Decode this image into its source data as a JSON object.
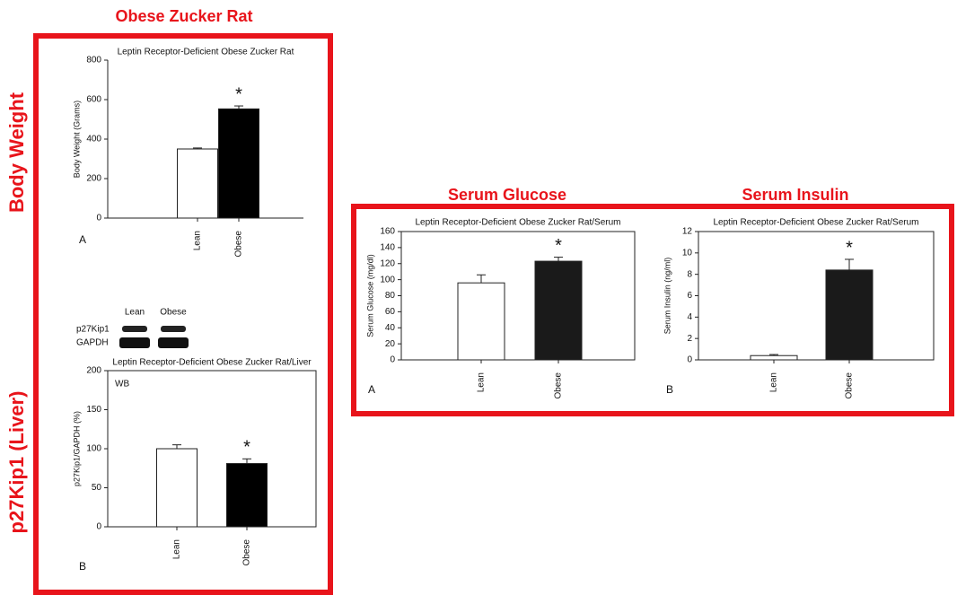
{
  "headings": {
    "top": "Obese Zucker  Rat",
    "left_upper": "Body Weight",
    "left_lower": "p27Kip1 (Liver)",
    "glucose": "Serum Glucose",
    "insulin": "Serum Insulin"
  },
  "blot": {
    "lanes": [
      "Lean",
      "Obese"
    ],
    "rows": [
      "p27Kip1",
      "GAPDH"
    ]
  },
  "chart_data": [
    {
      "type": "bar",
      "title": "Leptin Receptor-Deficient Obese Zucker Rat",
      "y_label": "Body Weight (Grams)",
      "panel": "A",
      "annotation": "*",
      "categories": [
        "Lean",
        "Obese"
      ],
      "values": [
        350,
        553
      ],
      "errors": [
        5,
        15
      ],
      "colors": [
        "#ffffff",
        "#000000"
      ],
      "ylim": [
        0,
        800
      ],
      "yticks": [
        0,
        200,
        400,
        600,
        800
      ],
      "frame": false
    },
    {
      "type": "bar",
      "title": "Leptin Receptor-Deficient Obese Zucker Rat/Liver",
      "y_label": "p27Kip1/GAPDH (%)",
      "panel": "B",
      "annotation": "*",
      "inset": "WB",
      "categories": [
        "Lean",
        "Obese"
      ],
      "values": [
        100,
        81
      ],
      "errors": [
        5,
        6
      ],
      "colors": [
        "#ffffff",
        "#000000"
      ],
      "ylim": [
        0,
        200
      ],
      "yticks": [
        0,
        50,
        100,
        150,
        200
      ],
      "frame": true
    },
    {
      "type": "bar",
      "title": "Leptin Receptor-Deficient Obese Zucker Rat/Serum",
      "y_label": "Serum Glucose (mg/dl)",
      "panel": "A",
      "annotation": "*",
      "categories": [
        "Lean",
        "Obese"
      ],
      "values": [
        96,
        123
      ],
      "errors": [
        10,
        5
      ],
      "colors": [
        "#ffffff",
        "#1a1a1a"
      ],
      "ylim": [
        0,
        160
      ],
      "yticks": [
        0,
        20,
        40,
        60,
        80,
        100,
        120,
        140,
        160
      ],
      "frame": true
    },
    {
      "type": "bar",
      "title": "Leptin Receptor-Deficient Obese Zucker Rat/Serum",
      "y_label": "Serum Insulin (ng/ml)",
      "panel": "B",
      "annotation": "*",
      "categories": [
        "Lean",
        "Obese"
      ],
      "values": [
        0.4,
        8.4
      ],
      "errors": [
        0.1,
        1.0
      ],
      "colors": [
        "#ffffff",
        "#1a1a1a"
      ],
      "ylim": [
        0,
        12
      ],
      "yticks": [
        0,
        2,
        4,
        6,
        8,
        10,
        12
      ],
      "frame": true
    }
  ]
}
